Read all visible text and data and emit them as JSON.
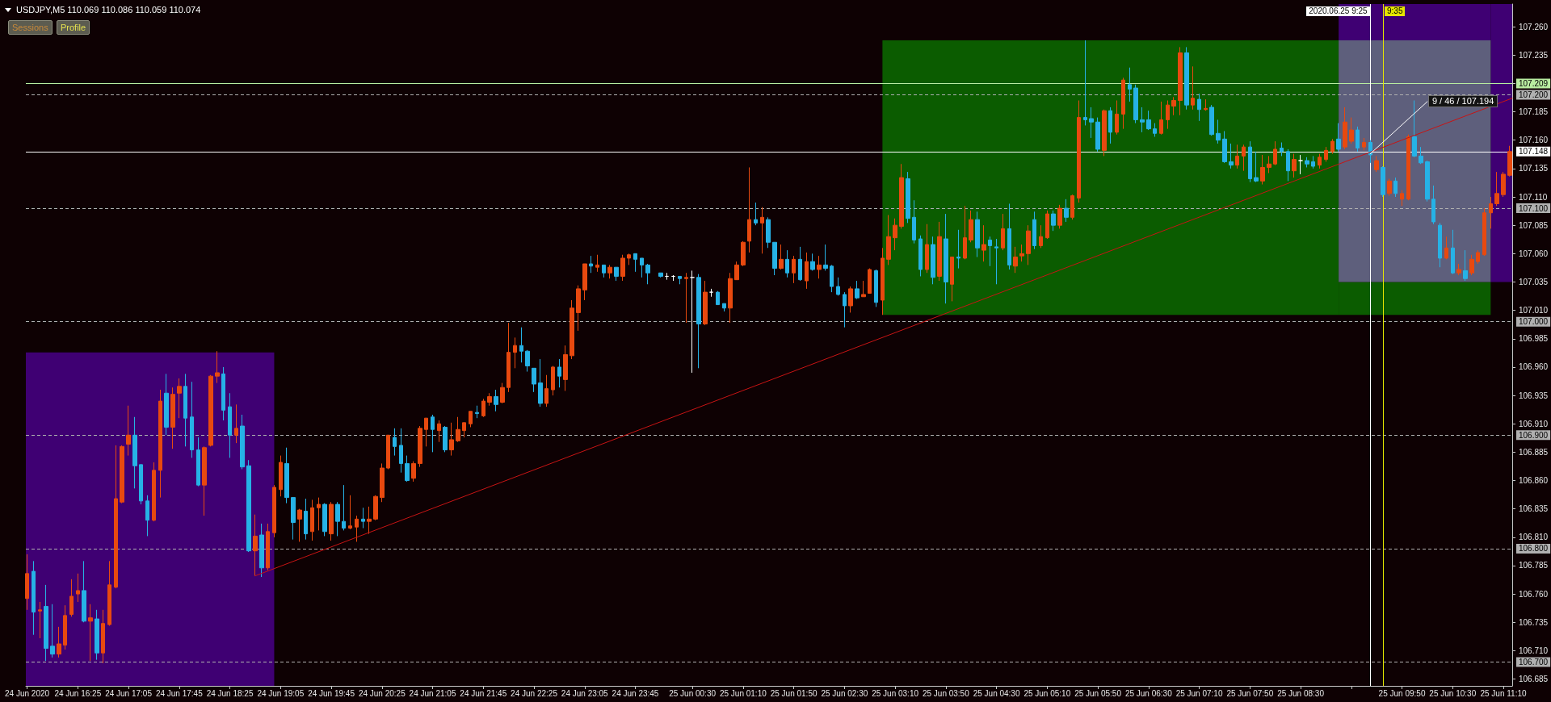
{
  "chart_data": {
    "type": "candlestick",
    "title": "USDJPY,M5  110.069 110.086 110.059 110.074",
    "x": [
      "2020-06-24T15:45",
      "2020-06-24T15:50",
      "2020-06-24T15:55",
      "2020-06-24T16:00",
      "2020-06-24T16:05",
      "2020-06-24T16:10",
      "2020-06-24T16:15",
      "2020-06-24T16:20",
      "2020-06-24T16:25",
      "2020-06-24T16:30",
      "2020-06-24T16:35",
      "2020-06-24T16:40",
      "2020-06-24T16:45",
      "2020-06-24T16:50",
      "2020-06-24T16:55",
      "2020-06-24T17:00",
      "2020-06-24T17:05",
      "2020-06-24T17:10",
      "2020-06-24T17:15",
      "2020-06-24T17:20",
      "2020-06-24T17:25",
      "2020-06-24T17:30",
      "2020-06-24T17:35",
      "2020-06-24T17:40",
      "2020-06-24T17:45",
      "2020-06-24T17:50",
      "2020-06-24T17:55",
      "2020-06-24T18:00",
      "2020-06-24T18:05",
      "2020-06-24T18:10",
      "2020-06-24T18:15",
      "2020-06-24T18:20",
      "2020-06-24T18:25",
      "2020-06-24T18:30",
      "2020-06-24T18:35",
      "2020-06-24T18:40",
      "2020-06-24T18:45",
      "2020-06-24T18:50",
      "2020-06-24T18:55",
      "2020-06-24T19:00",
      "2020-06-24T19:05",
      "2020-06-24T19:10",
      "2020-06-24T19:15",
      "2020-06-24T19:20",
      "2020-06-24T19:25",
      "2020-06-24T19:30",
      "2020-06-24T19:35",
      "2020-06-24T19:40",
      "2020-06-24T19:45",
      "2020-06-24T19:50",
      "2020-06-24T19:55",
      "2020-06-24T20:00",
      "2020-06-24T20:05",
      "2020-06-24T20:10",
      "2020-06-24T20:15",
      "2020-06-24T20:20",
      "2020-06-24T20:25",
      "2020-06-24T20:30",
      "2020-06-24T20:35",
      "2020-06-24T20:40",
      "2020-06-24T20:45",
      "2020-06-24T20:50",
      "2020-06-24T20:55",
      "2020-06-24T21:00",
      "2020-06-24T21:05",
      "2020-06-24T21:10",
      "2020-06-24T21:15",
      "2020-06-24T21:20",
      "2020-06-24T21:25",
      "2020-06-24T21:30",
      "2020-06-24T21:35",
      "2020-06-24T21:40",
      "2020-06-24T21:45",
      "2020-06-24T21:50",
      "2020-06-24T21:55",
      "2020-06-24T22:00",
      "2020-06-24T22:05",
      "2020-06-24T22:10",
      "2020-06-24T22:15",
      "2020-06-24T22:20",
      "2020-06-24T22:25",
      "2020-06-24T22:30",
      "2020-06-24T22:35",
      "2020-06-24T22:40",
      "2020-06-24T22:45",
      "2020-06-24T22:50",
      "2020-06-24T22:55",
      "2020-06-24T23:00",
      "2020-06-24T23:05",
      "2020-06-24T23:10",
      "2020-06-24T23:15",
      "2020-06-24T23:20",
      "2020-06-24T23:25",
      "2020-06-24T23:30",
      "2020-06-24T23:35",
      "2020-06-24T23:40",
      "2020-06-24T23:45",
      "2020-06-24T23:50",
      "2020-06-24T23:55",
      "2020-06-25T00:05",
      "2020-06-25T00:10",
      "2020-06-25T00:15",
      "2020-06-25T00:20",
      "2020-06-25T00:25",
      "2020-06-25T00:30",
      "2020-06-25T00:35",
      "2020-06-25T00:40",
      "2020-06-25T00:45",
      "2020-06-25T00:50",
      "2020-06-25T00:55",
      "2020-06-25T01:00",
      "2020-06-25T01:05",
      "2020-06-25T01:10",
      "2020-06-25T01:15",
      "2020-06-25T01:20",
      "2020-06-25T01:25",
      "2020-06-25T01:30",
      "2020-06-25T01:35",
      "2020-06-25T01:40",
      "2020-06-25T01:45",
      "2020-06-25T01:50",
      "2020-06-25T01:55",
      "2020-06-25T02:00",
      "2020-06-25T02:05",
      "2020-06-25T02:10",
      "2020-06-25T02:15",
      "2020-06-25T02:20",
      "2020-06-25T02:25",
      "2020-06-25T02:30",
      "2020-06-25T02:35",
      "2020-06-25T02:40",
      "2020-06-25T02:45",
      "2020-06-25T02:50",
      "2020-06-25T02:55",
      "2020-06-25T03:00",
      "2020-06-25T03:05",
      "2020-06-25T03:10",
      "2020-06-25T03:15",
      "2020-06-25T03:20",
      "2020-06-25T03:25",
      "2020-06-25T03:30",
      "2020-06-25T03:35",
      "2020-06-25T03:40",
      "2020-06-25T03:45",
      "2020-06-25T03:50",
      "2020-06-25T03:55",
      "2020-06-25T04:00",
      "2020-06-25T04:05",
      "2020-06-25T04:10",
      "2020-06-25T04:15",
      "2020-06-25T04:20",
      "2020-06-25T04:25",
      "2020-06-25T04:30",
      "2020-06-25T04:35",
      "2020-06-25T04:40",
      "2020-06-25T04:45",
      "2020-06-25T04:50",
      "2020-06-25T04:55",
      "2020-06-25T05:00",
      "2020-06-25T05:05",
      "2020-06-25T05:10",
      "2020-06-25T05:15",
      "2020-06-25T05:20",
      "2020-06-25T05:25",
      "2020-06-25T05:30",
      "2020-06-25T05:35",
      "2020-06-25T05:40",
      "2020-06-25T05:45",
      "2020-06-25T05:50",
      "2020-06-25T05:55",
      "2020-06-25T06:00",
      "2020-06-25T06:05",
      "2020-06-25T06:10",
      "2020-06-25T06:15",
      "2020-06-25T06:20",
      "2020-06-25T06:25",
      "2020-06-25T06:30",
      "2020-06-25T06:35",
      "2020-06-25T06:40",
      "2020-06-25T06:45",
      "2020-06-25T06:50",
      "2020-06-25T06:55",
      "2020-06-25T07:00",
      "2020-06-25T07:05",
      "2020-06-25T07:10",
      "2020-06-25T07:15",
      "2020-06-25T07:20",
      "2020-06-25T07:25",
      "2020-06-25T07:30",
      "2020-06-25T07:35",
      "2020-06-25T07:40",
      "2020-06-25T07:45",
      "2020-06-25T07:50",
      "2020-06-25T07:55",
      "2020-06-25T08:00",
      "2020-06-25T08:05",
      "2020-06-25T08:10",
      "2020-06-25T08:15",
      "2020-06-25T08:20",
      "2020-06-25T08:25",
      "2020-06-25T08:30",
      "2020-06-25T08:35",
      "2020-06-25T08:40",
      "2020-06-25T08:45",
      "2020-06-25T08:50",
      "2020-06-25T08:55",
      "2020-06-25T09:00",
      "2020-06-25T09:05",
      "2020-06-25T09:10",
      "2020-06-25T09:15",
      "2020-06-25T09:20",
      "2020-06-25T09:25",
      "2020-06-25T09:30",
      "2020-06-25T09:35",
      "2020-06-25T09:40",
      "2020-06-25T09:45",
      "2020-06-25T09:50",
      "2020-06-25T09:55",
      "2020-06-25T10:00",
      "2020-06-25T10:05",
      "2020-06-25T10:10",
      "2020-06-25T10:15",
      "2020-06-25T10:20",
      "2020-06-25T10:25",
      "2020-06-25T10:30",
      "2020-06-25T10:35",
      "2020-06-25T10:40",
      "2020-06-25T10:45",
      "2020-06-25T10:50",
      "2020-06-25T10:55",
      "2020-06-25T11:00",
      "2020-06-25T11:05",
      "2020-06-25T11:10",
      "2020-06-25T11:15"
    ],
    "ohlc": [
      [
        106.756,
        106.795,
        106.746,
        106.778
      ],
      [
        106.78,
        106.789,
        106.724,
        106.744
      ],
      [
        106.745,
        106.753,
        106.721,
        106.746
      ],
      [
        106.749,
        106.768,
        106.701,
        106.712
      ],
      [
        106.714,
        106.751,
        106.704,
        106.707
      ],
      [
        106.707,
        106.731,
        106.704,
        106.716
      ],
      [
        106.715,
        106.75,
        106.711,
        106.741
      ],
      [
        106.742,
        106.773,
        106.74,
        106.758
      ],
      [
        106.76,
        106.778,
        106.753,
        106.763
      ],
      [
        106.763,
        106.789,
        106.735,
        106.736
      ],
      [
        106.736,
        106.751,
        106.701,
        106.739
      ],
      [
        106.738,
        106.746,
        106.702,
        106.708
      ],
      [
        106.708,
        106.746,
        106.699,
        106.734
      ],
      [
        106.733,
        106.789,
        106.732,
        106.768
      ],
      [
        106.766,
        106.891,
        106.765,
        106.844
      ],
      [
        106.841,
        106.891,
        106.84,
        106.89
      ],
      [
        106.892,
        106.926,
        106.882,
        106.9
      ],
      [
        106.9,
        106.916,
        106.853,
        106.873
      ],
      [
        106.874,
        106.874,
        106.839,
        106.842
      ],
      [
        106.842,
        106.847,
        106.811,
        106.825
      ],
      [
        106.825,
        106.876,
        106.824,
        106.869
      ],
      [
        106.869,
        106.94,
        106.845,
        106.93
      ],
      [
        106.937,
        106.954,
        106.9,
        106.907
      ],
      [
        106.907,
        106.942,
        106.888,
        106.936
      ],
      [
        106.937,
        106.95,
        106.915,
        106.943
      ],
      [
        106.943,
        106.954,
        106.89,
        106.915
      ],
      [
        106.916,
        106.947,
        106.88,
        106.887
      ],
      [
        106.887,
        106.898,
        106.855,
        106.856
      ],
      [
        106.856,
        106.89,
        106.829,
        106.889
      ],
      [
        106.891,
        106.953,
        106.89,
        106.952
      ],
      [
        106.952,
        106.974,
        106.946,
        106.955
      ],
      [
        106.954,
        106.96,
        106.913,
        106.922
      ],
      [
        106.925,
        106.937,
        106.88,
        106.9
      ],
      [
        106.9,
        106.927,
        106.893,
        106.906
      ],
      [
        106.908,
        106.918,
        106.87,
        106.872
      ],
      [
        106.873,
        106.878,
        106.797,
        106.798
      ],
      [
        106.798,
        106.83,
        106.776,
        106.811
      ],
      [
        106.812,
        106.822,
        106.775,
        106.783
      ],
      [
        106.783,
        106.822,
        106.781,
        106.815
      ],
      [
        106.814,
        106.856,
        106.81,
        106.854
      ],
      [
        106.852,
        106.882,
        106.846,
        106.876
      ],
      [
        106.875,
        106.889,
        106.84,
        106.845
      ],
      [
        106.845,
        106.845,
        106.808,
        106.823
      ],
      [
        106.826,
        106.835,
        106.806,
        106.834
      ],
      [
        106.833,
        106.844,
        106.808,
        106.813
      ],
      [
        106.815,
        106.843,
        106.807,
        106.836
      ],
      [
        106.836,
        106.845,
        106.816,
        106.839
      ],
      [
        106.839,
        106.84,
        106.811,
        106.815
      ],
      [
        106.813,
        106.841,
        106.807,
        106.839
      ],
      [
        106.839,
        106.841,
        106.811,
        106.824
      ],
      [
        106.824,
        106.856,
        106.816,
        106.818
      ],
      [
        106.818,
        106.847,
        106.817,
        106.82
      ],
      [
        106.819,
        106.829,
        106.806,
        106.826
      ],
      [
        106.826,
        106.836,
        106.818,
        106.824
      ],
      [
        106.824,
        106.837,
        106.813,
        106.826
      ],
      [
        106.826,
        106.847,
        106.825,
        106.846
      ],
      [
        106.845,
        106.875,
        106.841,
        106.871
      ],
      [
        106.871,
        106.9,
        106.87,
        106.9
      ],
      [
        106.898,
        106.906,
        106.882,
        106.89
      ],
      [
        106.891,
        106.906,
        106.867,
        106.875
      ],
      [
        106.875,
        106.882,
        106.859,
        106.86
      ],
      [
        106.862,
        106.877,
        106.859,
        106.875
      ],
      [
        106.875,
        106.908,
        106.872,
        106.906
      ],
      [
        106.905,
        106.915,
        106.89,
        106.915
      ],
      [
        106.916,
        106.918,
        106.885,
        106.905
      ],
      [
        106.904,
        106.913,
        106.894,
        106.91
      ],
      [
        106.907,
        106.908,
        106.885,
        106.887
      ],
      [
        106.887,
        106.911,
        106.882,
        106.896
      ],
      [
        106.895,
        106.916,
        106.894,
        106.905
      ],
      [
        106.904,
        106.911,
        106.898,
        106.911
      ],
      [
        106.91,
        106.921,
        106.907,
        106.921
      ],
      [
        106.92,
        106.926,
        106.915,
        106.919
      ],
      [
        106.917,
        106.932,
        106.916,
        106.93
      ],
      [
        106.929,
        106.937,
        106.926,
        106.934
      ],
      [
        106.934,
        106.94,
        106.921,
        106.927
      ],
      [
        106.929,
        106.946,
        106.928,
        106.942
      ],
      [
        106.942,
        106.999,
        106.938,
        106.973
      ],
      [
        106.973,
        106.986,
        106.959,
        106.979
      ],
      [
        106.979,
        106.995,
        106.964,
        106.974
      ],
      [
        106.974,
        106.975,
        106.956,
        106.961
      ],
      [
        106.959,
        106.959,
        106.938,
        106.945
      ],
      [
        106.946,
        106.967,
        106.925,
        106.928
      ],
      [
        106.928,
        106.953,
        106.925,
        106.941
      ],
      [
        106.94,
        106.961,
        106.935,
        106.96
      ],
      [
        106.96,
        106.967,
        106.942,
        106.952
      ],
      [
        106.949,
        106.979,
        106.939,
        106.971
      ],
      [
        106.97,
        107.019,
        106.967,
        107.012
      ],
      [
        107.008,
        107.032,
        106.992,
        107.029
      ],
      [
        107.028,
        107.051,
        107.019,
        107.051
      ],
      [
        107.051,
        107.058,
        107.043,
        107.049
      ],
      [
        107.048,
        107.059,
        107.044,
        107.05
      ],
      [
        107.05,
        107.05,
        107.039,
        107.043
      ],
      [
        107.043,
        107.05,
        107.038,
        107.048
      ],
      [
        107.048,
        107.048,
        107.036,
        107.04
      ],
      [
        107.04,
        107.059,
        107.036,
        107.056
      ],
      [
        107.056,
        107.06,
        107.05,
        107.059
      ],
      [
        107.06,
        107.06,
        107.044,
        107.055
      ],
      [
        107.056,
        107.056,
        107.039,
        107.05
      ],
      [
        107.05,
        107.051,
        107.033,
        107.043
      ],
      [
        107.043,
        107.043,
        107.039,
        107.04
      ],
      [
        107.04,
        107.043,
        107.037,
        107.04
      ],
      [
        107.04,
        107.041,
        107.036,
        107.04
      ],
      [
        107.04,
        107.04,
        107.033,
        107.038
      ],
      [
        107.038,
        107.043,
        106.999,
        107.039
      ],
      [
        107.039,
        107.045,
        106.955,
        107.039
      ],
      [
        107.039,
        107.042,
        106.959,
        106.998
      ],
      [
        106.998,
        107.036,
        106.997,
        107.026
      ],
      [
        107.026,
        107.029,
        107.022,
        107.026
      ],
      [
        107.026,
        107.027,
        107.015,
        107.015
      ],
      [
        107.016,
        107.016,
        107.009,
        107.012
      ],
      [
        107.012,
        107.043,
        106.999,
        107.038
      ],
      [
        107.037,
        107.053,
        107.037,
        107.05
      ],
      [
        107.05,
        107.071,
        107.049,
        107.07
      ],
      [
        107.071,
        107.136,
        107.061,
        107.09
      ],
      [
        107.09,
        107.105,
        107.085,
        107.087
      ],
      [
        107.087,
        107.101,
        107.06,
        107.092
      ],
      [
        107.09,
        107.092,
        107.065,
        107.07
      ],
      [
        107.07,
        107.07,
        107.041,
        107.047
      ],
      [
        107.047,
        107.068,
        107.046,
        107.055
      ],
      [
        107.055,
        107.063,
        107.039,
        107.043
      ],
      [
        107.043,
        107.058,
        107.034,
        107.055
      ],
      [
        107.055,
        107.066,
        107.036,
        107.037
      ],
      [
        107.036,
        107.061,
        107.029,
        107.053
      ],
      [
        107.053,
        107.06,
        107.045,
        107.046
      ],
      [
        107.046,
        107.058,
        107.038,
        107.05
      ],
      [
        107.05,
        107.068,
        107.045,
        107.047
      ],
      [
        107.049,
        107.05,
        107.026,
        107.031
      ],
      [
        107.031,
        107.039,
        107.023,
        107.024
      ],
      [
        107.024,
        107.026,
        106.995,
        107.014
      ],
      [
        107.014,
        107.031,
        107.008,
        107.029
      ],
      [
        107.029,
        107.036,
        107.02,
        107.021
      ],
      [
        107.022,
        107.036,
        107.022,
        107.024
      ],
      [
        107.025,
        107.047,
        107.025,
        107.046
      ],
      [
        107.045,
        107.046,
        107.013,
        107.017
      ],
      [
        107.019,
        107.065,
        107.006,
        107.056
      ],
      [
        107.055,
        107.094,
        107.05,
        107.075
      ],
      [
        107.074,
        107.091,
        107.063,
        107.085
      ],
      [
        107.084,
        107.139,
        107.082,
        107.127
      ],
      [
        107.126,
        107.132,
        107.087,
        107.091
      ],
      [
        107.092,
        107.107,
        107.069,
        107.072
      ],
      [
        107.073,
        107.076,
        107.04,
        107.046
      ],
      [
        107.046,
        107.086,
        107.043,
        107.068
      ],
      [
        107.068,
        107.075,
        107.033,
        107.039
      ],
      [
        107.04,
        107.088,
        107.036,
        107.075
      ],
      [
        107.073,
        107.095,
        107.016,
        107.035
      ],
      [
        107.033,
        107.057,
        107.018,
        107.057
      ],
      [
        107.057,
        107.081,
        107.047,
        107.056
      ],
      [
        107.056,
        107.102,
        107.055,
        107.074
      ],
      [
        107.072,
        107.098,
        107.07,
        107.09
      ],
      [
        107.09,
        107.097,
        107.057,
        107.065
      ],
      [
        107.063,
        107.085,
        107.053,
        107.068
      ],
      [
        107.072,
        107.075,
        107.049,
        107.067
      ],
      [
        107.066,
        107.073,
        107.033,
        107.065
      ],
      [
        107.065,
        107.095,
        107.063,
        107.082
      ],
      [
        107.082,
        107.104,
        107.046,
        107.05
      ],
      [
        107.049,
        107.066,
        107.043,
        107.057
      ],
      [
        107.058,
        107.068,
        107.053,
        107.06
      ],
      [
        107.06,
        107.085,
        107.05,
        107.08
      ],
      [
        107.09,
        107.097,
        107.064,
        107.067
      ],
      [
        107.067,
        107.085,
        107.065,
        107.075
      ],
      [
        107.074,
        107.098,
        107.073,
        107.095
      ],
      [
        107.095,
        107.098,
        107.08,
        107.085
      ],
      [
        107.085,
        107.103,
        107.082,
        107.1
      ],
      [
        107.1,
        107.108,
        107.088,
        107.092
      ],
      [
        107.092,
        107.112,
        107.09,
        107.111
      ],
      [
        107.109,
        107.195,
        107.105,
        107.18
      ],
      [
        107.18,
        107.248,
        107.173,
        107.178
      ],
      [
        107.179,
        107.189,
        107.162,
        107.176
      ],
      [
        107.176,
        107.18,
        107.15,
        107.152
      ],
      [
        107.151,
        107.187,
        107.146,
        107.186
      ],
      [
        107.186,
        107.189,
        107.157,
        107.167
      ],
      [
        107.167,
        107.195,
        107.165,
        107.183
      ],
      [
        107.183,
        107.215,
        107.17,
        107.213
      ],
      [
        107.209,
        107.224,
        107.194,
        107.205
      ],
      [
        107.206,
        107.209,
        107.175,
        107.178
      ],
      [
        107.178,
        107.189,
        107.167,
        107.176
      ],
      [
        107.178,
        107.186,
        107.169,
        107.17
      ],
      [
        107.17,
        107.175,
        107.163,
        107.166
      ],
      [
        107.166,
        107.194,
        107.165,
        107.178
      ],
      [
        107.178,
        107.195,
        107.17,
        107.191
      ],
      [
        107.19,
        107.198,
        107.182,
        107.195
      ],
      [
        107.195,
        107.242,
        107.182,
        107.237
      ],
      [
        107.237,
        107.242,
        107.187,
        107.191
      ],
      [
        107.191,
        107.225,
        107.187,
        107.197
      ],
      [
        107.196,
        107.201,
        107.177,
        107.187
      ],
      [
        107.187,
        107.196,
        107.186,
        107.188
      ],
      [
        107.189,
        107.191,
        107.164,
        107.165
      ],
      [
        107.166,
        107.178,
        107.157,
        107.16
      ],
      [
        107.161,
        107.168,
        107.14,
        107.141
      ],
      [
        107.141,
        107.157,
        107.135,
        107.138
      ],
      [
        107.138,
        107.156,
        107.135,
        107.146
      ],
      [
        107.146,
        107.156,
        107.133,
        107.154
      ],
      [
        107.154,
        107.159,
        107.123,
        107.126
      ],
      [
        107.127,
        107.15,
        107.123,
        107.124
      ],
      [
        107.124,
        107.147,
        107.121,
        107.136
      ],
      [
        107.136,
        107.146,
        107.131,
        107.139
      ],
      [
        107.139,
        107.159,
        107.138,
        107.152
      ],
      [
        107.153,
        107.158,
        107.146,
        107.15
      ],
      [
        107.15,
        107.152,
        107.124,
        107.133
      ],
      [
        107.133,
        107.148,
        107.127,
        107.143
      ],
      [
        107.142,
        107.147,
        107.13,
        107.142
      ],
      [
        107.142,
        107.145,
        107.136,
        107.139
      ],
      [
        107.141,
        107.146,
        107.135,
        107.137
      ],
      [
        107.138,
        107.148,
        107.135,
        107.145
      ],
      [
        107.143,
        107.154,
        107.141,
        107.151
      ],
      [
        107.15,
        107.161,
        107.148,
        107.159
      ],
      [
        107.161,
        107.175,
        107.15,
        107.152
      ],
      [
        107.154,
        107.189,
        107.152,
        107.176
      ],
      [
        107.159,
        107.18,
        107.157,
        107.169
      ],
      [
        107.169,
        107.172,
        107.15,
        107.153
      ],
      [
        107.154,
        107.162,
        107.151,
        107.158
      ],
      [
        107.158,
        107.16,
        107.14,
        107.147
      ],
      [
        107.134,
        107.146,
        107.132,
        107.142
      ],
      [
        107.136,
        107.137,
        107.11,
        107.112
      ],
      [
        107.113,
        107.126,
        107.111,
        107.124
      ],
      [
        107.124,
        107.127,
        107.11,
        107.113
      ],
      [
        107.108,
        107.116,
        107.102,
        107.113
      ],
      [
        107.108,
        107.165,
        107.107,
        107.163
      ],
      [
        107.163,
        107.195,
        107.145,
        107.146
      ],
      [
        107.146,
        107.154,
        107.139,
        107.14
      ],
      [
        107.141,
        107.142,
        107.106,
        107.108
      ],
      [
        107.108,
        107.12,
        107.086,
        107.088
      ],
      [
        107.085,
        107.087,
        107.048,
        107.056
      ],
      [
        107.056,
        107.075,
        107.055,
        107.065
      ],
      [
        107.065,
        107.081,
        107.042,
        107.043
      ],
      [
        107.043,
        107.051,
        107.041,
        107.046
      ],
      [
        107.045,
        107.063,
        107.036,
        107.038
      ],
      [
        107.043,
        107.059,
        107.041,
        107.055
      ],
      [
        107.053,
        107.063,
        107.051,
        107.061
      ],
      [
        107.059,
        107.1,
        107.058,
        107.096
      ],
      [
        107.096,
        107.11,
        107.082,
        107.104
      ],
      [
        107.104,
        107.132,
        107.102,
        107.113
      ],
      [
        107.112,
        107.132,
        107.11,
        107.13
      ],
      [
        107.129,
        107.155,
        107.128,
        107.15
      ]
    ],
    "colors": [
      "#e8490f",
      "#26b2e6",
      "#e8490f",
      "#26b2e6",
      "#26b2e6",
      "#e8490f",
      "#e8490f",
      "#e8490f",
      "#e8490f",
      "#26b2e6",
      "#e8490f",
      "#26b2e6",
      "#e8490f",
      "#e8490f",
      "#e8490f",
      "#e8490f",
      "#e8490f",
      "#26b2e6",
      "#26b2e6",
      "#26b2e6",
      "#e8490f",
      "#e8490f",
      "#26b2e6",
      "#e8490f",
      "#e8490f",
      "#26b2e6",
      "#26b2e6",
      "#26b2e6",
      "#e8490f",
      "#e8490f",
      "#e8490f",
      "#26b2e6",
      "#26b2e6",
      "#e8490f",
      "#26b2e6",
      "#26b2e6",
      "#e8490f",
      "#26b2e6",
      "#e8490f",
      "#e8490f",
      "#e8490f",
      "#26b2e6",
      "#26b2e6",
      "#e8490f",
      "#26b2e6",
      "#e8490f",
      "#e8490f",
      "#26b2e6",
      "#e8490f",
      "#26b2e6",
      "#26b2e6",
      "#e8490f",
      "#e8490f",
      "#26b2e6",
      "#e8490f",
      "#e8490f",
      "#e8490f",
      "#e8490f",
      "#26b2e6",
      "#26b2e6",
      "#26b2e6",
      "#e8490f",
      "#e8490f",
      "#e8490f",
      "#26b2e6",
      "#e8490f",
      "#26b2e6",
      "#e8490f",
      "#e8490f",
      "#e8490f",
      "#e8490f",
      "#26b2e6",
      "#e8490f",
      "#e8490f",
      "#26b2e6",
      "#e8490f",
      "#e8490f",
      "#e8490f",
      "#26b2e6",
      "#26b2e6",
      "#26b2e6",
      "#26b2e6",
      "#e8490f",
      "#e8490f",
      "#26b2e6",
      "#e8490f",
      "#e8490f",
      "#e8490f",
      "#e8490f",
      "#26b2e6",
      "#e8490f",
      "#26b2e6",
      "#e8490f",
      "#26b2e6",
      "#e8490f",
      "#e8490f",
      "#26b2e6",
      "#26b2e6",
      "#26b2e6",
      "#26b2e6",
      "#ffffff",
      "#ffffff",
      "#26b2e6",
      "#e8490f",
      "#ffffff",
      "#26b2e6",
      "#e8490f",
      "#ffffff",
      "#26b2e6",
      "#26b2e6",
      "#e8490f",
      "#e8490f",
      "#e8490f",
      "#e8490f",
      "#26b2e6",
      "#e8490f",
      "#26b2e6",
      "#26b2e6",
      "#e8490f",
      "#26b2e6",
      "#e8490f",
      "#26b2e6",
      "#e8490f",
      "#26b2e6",
      "#e8490f",
      "#26b2e6",
      "#26b2e6",
      "#26b2e6",
      "#26b2e6",
      "#e8490f",
      "#26b2e6",
      "#e8490f",
      "#e8490f",
      "#26b2e6",
      "#e8490f",
      "#e8490f",
      "#e8490f",
      "#e8490f",
      "#26b2e6",
      "#26b2e6",
      "#26b2e6",
      "#e8490f",
      "#26b2e6",
      "#e8490f",
      "#26b2e6",
      "#e8490f",
      "#26b2e6",
      "#e8490f",
      "#e8490f",
      "#26b2e6",
      "#e8490f",
      "#26b2e6",
      "#26b2e6",
      "#e8490f",
      "#26b2e6",
      "#e8490f",
      "#e8490f",
      "#e8490f",
      "#26b2e6",
      "#e8490f",
      "#e8490f",
      "#26b2e6",
      "#e8490f",
      "#26b2e6",
      "#e8490f",
      "#e8490f",
      "#26b2e6",
      "#26b2e6",
      "#26b2e6",
      "#e8490f",
      "#26b2e6",
      "#e8490f",
      "#e8490f",
      "#26b2e6",
      "#26b2e6",
      "#26b2e6",
      "#26b2e6",
      "#26b2e6",
      "#e8490f",
      "#e8490f",
      "#e8490f",
      "#e8490f",
      "#26b2e6",
      "#e8490f",
      "#26b2e6",
      "#e8490f",
      "#26b2e6",
      "#26b2e6",
      "#26b2e6",
      "#26b2e6",
      "#e8490f",
      "#e8490f",
      "#26b2e6",
      "#26b2e6",
      "#e8490f",
      "#e8490f",
      "#e8490f",
      "#26b2e6",
      "#26b2e6",
      "#e8490f",
      "#ffffff",
      "#26b2e6",
      "#26b2e6",
      "#e8490f",
      "#e8490f",
      "#e8490f",
      "#26b2e6",
      "#e8490f",
      "#e8490f",
      "#26b2e6",
      "#e8490f",
      "#26b2e6",
      "#e8490f",
      "#26b2e6",
      "#e8490f",
      "#26b2e6",
      "#e8490f",
      "#e8490f",
      "#26b2e6",
      "#26b2e6",
      "#26b2e6",
      "#26b2e6",
      "#26b2e6",
      "#e8490f",
      "#26b2e6",
      "#e8490f",
      "#26b2e6",
      "#e8490f",
      "#e8490f",
      "#e8490f",
      "#e8490f",
      "#e8490f",
      "#e8490f",
      "#e8490f"
    ],
    "series": [
      {
        "type": "line",
        "color": "#3f0073",
        "x": [
          "2020-06-24T15:44",
          "2020-06-24T19:00"
        ],
        "values": [
          null,
          null
        ],
        "upper": [
          106.973,
          106.973
        ],
        "lower": [
          106.679,
          106.679
        ]
      },
      {
        "type": "line",
        "color": "#0b5c00",
        "x": [
          "2020-06-25T03:00",
          "2020-06-25T09:00"
        ],
        "values": [
          null,
          null
        ],
        "upper": [
          107.248,
          107.248
        ],
        "lower": [
          107.006,
          107.006
        ]
      },
      {
        "type": "line",
        "color": "#0b5c00",
        "x": [
          "2020-06-25T09:00",
          "2020-06-25T11:00"
        ],
        "values": [
          null,
          null
        ],
        "upper": [
          107.035,
          107.035
        ],
        "lower": [
          107.006,
          107.006
        ]
      },
      {
        "type": "line",
        "color": "#3f0073",
        "x": [
          "2020-06-25T09:00",
          "2020-06-25T11:00"
        ],
        "values": [
          null,
          null
        ],
        "upper": [
          107.28,
          107.28
        ],
        "lower": [
          107.248,
          107.248
        ]
      },
      {
        "type": "line",
        "color": "#3f0073",
        "x": [
          "2020-06-25T11:00",
          "2020-06-25T11:17"
        ],
        "values": [
          null,
          null
        ],
        "upper": [
          107.28,
          107.28
        ],
        "lower": [
          107.035,
          107.035
        ]
      },
      {
        "type": "line",
        "color": "#5e5f7c",
        "x": [
          "2020-06-25T09:00",
          "2020-06-25T11:00"
        ],
        "values": [
          null,
          null
        ],
        "upper": [
          107.248,
          107.248
        ],
        "lower": [
          107.035,
          107.035
        ]
      },
      {
        "type": "line",
        "color": "#c81414",
        "x": [
          "2020-06-24T18:45",
          "2020-06-25T11:17"
        ],
        "values": [
          106.776,
          107.197
        ]
      },
      {
        "type": "line",
        "color": "#ffffff",
        "x": [
          "2020-06-25T09:25",
          "2020-06-25T10:10"
        ],
        "values": [
          107.148,
          107.194
        ]
      }
    ],
    "ref_lines": [
      {
        "axis": "y",
        "value": 107.209,
        "label": "107.209",
        "color": "#b8eca0",
        "line_style": "solid"
      },
      {
        "axis": "y",
        "value": 107.2,
        "label": "107.200",
        "color": "#b0b0b0",
        "line_style": "dashed"
      },
      {
        "axis": "y",
        "value": 107.148,
        "label": "107.148",
        "color": "#ffffff",
        "line_style": "solid"
      },
      {
        "axis": "y",
        "value": 107.1,
        "label": "107.100",
        "color": "#b0b0b0",
        "line_style": "dashed"
      },
      {
        "axis": "y",
        "value": 107.0,
        "label": "107.000",
        "color": "#b0b0b0",
        "line_style": "dashed"
      },
      {
        "axis": "y",
        "value": 106.9,
        "label": "106.900",
        "color": "#b0b0b0",
        "line_style": "dashed"
      },
      {
        "axis": "y",
        "value": 106.8,
        "label": "106.800",
        "color": "#b0b0b0",
        "line_style": "dashed"
      },
      {
        "axis": "y",
        "value": 106.7,
        "label": "106.700",
        "color": "#b0b0b0",
        "line_style": "dashed"
      },
      {
        "axis": "x",
        "value": "2020-06-25T09:25",
        "label": "2020.06.25 9:25",
        "color": "#ffffff",
        "line_style": "solid"
      },
      {
        "axis": "x",
        "value": "2020-06-25T09:35",
        "label": "9:35",
        "color": "#e6e600",
        "line_style": "solid"
      }
    ],
    "annotations": [
      "Sessions",
      "Profile",
      {
        "text": "9 / 46 / 107.194",
        "x": "2020-06-25T10:10",
        "y": 107.194
      }
    ],
    "xlim": [
      "2020-06-24T15:44",
      "2020-06-25T11:17"
    ],
    "xticks": [
      {
        "value": "2020-06-24T15:45",
        "label": "24 Jun 2020"
      },
      {
        "value": "2020-06-24T16:25",
        "label": "24 Jun 16:25"
      },
      {
        "value": "2020-06-24T17:05",
        "label": "24 Jun 17:05"
      },
      {
        "value": "2020-06-24T17:45",
        "label": "24 Jun 17:45"
      },
      {
        "value": "2020-06-24T18:25",
        "label": "24 Jun 18:25"
      },
      {
        "value": "2020-06-24T19:05",
        "label": "24 Jun 19:05"
      },
      {
        "value": "2020-06-24T19:45",
        "label": "24 Jun 19:45"
      },
      {
        "value": "2020-06-24T20:25",
        "label": "24 Jun 20:25"
      },
      {
        "value": "2020-06-24T21:05",
        "label": "24 Jun 21:05"
      },
      {
        "value": "2020-06-24T21:45",
        "label": "24 Jun 21:45"
      },
      {
        "value": "2020-06-24T22:25",
        "label": "24 Jun 22:25"
      },
      {
        "value": "2020-06-24T23:05",
        "label": "24 Jun 23:05"
      },
      {
        "value": "2020-06-24T23:45",
        "label": "24 Jun 23:45"
      },
      {
        "value": "2020-06-25T00:30",
        "label": "25 Jun 00:30"
      },
      {
        "value": "2020-06-25T01:10",
        "label": "25 Jun 01:10"
      },
      {
        "value": "2020-06-25T01:50",
        "label": "25 Jun 01:50"
      },
      {
        "value": "2020-06-25T02:30",
        "label": "25 Jun 02:30"
      },
      {
        "value": "2020-06-25T03:10",
        "label": "25 Jun 03:10"
      },
      {
        "value": "2020-06-25T03:50",
        "label": "25 Jun 03:50"
      },
      {
        "value": "2020-06-25T04:30",
        "label": "25 Jun 04:30"
      },
      {
        "value": "2020-06-25T05:10",
        "label": "25 Jun 05:10"
      },
      {
        "value": "2020-06-25T05:50",
        "label": "25 Jun 05:50"
      },
      {
        "value": "2020-06-25T06:30",
        "label": "25 Jun 06:30"
      },
      {
        "value": "2020-06-25T07:10",
        "label": "25 Jun 07:10"
      },
      {
        "value": "2020-06-25T07:50",
        "label": "25 Jun 07:50"
      },
      {
        "value": "2020-06-25T08:30",
        "label": "25 Jun 08:30"
      },
      {
        "value": "2020-06-25T09:10",
        "label": null
      },
      {
        "value": "2020-06-25T09:50",
        "label": "25 Jun 09:50"
      },
      {
        "value": "2020-06-25T10:30",
        "label": "25 Jun 10:30"
      },
      {
        "value": "2020-06-25T11:10",
        "label": "25 Jun 11:10"
      }
    ],
    "ylim": [
      106.679,
      107.28
    ],
    "yticks": [
      {
        "value": 106.685,
        "label": "106.685"
      },
      {
        "value": 106.71,
        "label": "106.710"
      },
      106.735,
      {
        "value": 106.76,
        "label": "106.760"
      },
      106.785,
      {
        "value": 106.81,
        "label": "106.810"
      },
      106.835,
      {
        "value": 106.86,
        "label": "106.860"
      },
      106.885,
      {
        "value": 106.91,
        "label": "106.910"
      },
      106.935,
      {
        "value": 106.96,
        "label": "106.960"
      },
      106.985,
      {
        "value": 107.01,
        "label": "107.010"
      },
      107.035,
      {
        "value": 107.06,
        "label": "107.060"
      },
      107.085,
      {
        "value": 107.11,
        "label": "107.110"
      },
      107.135,
      {
        "value": 107.16,
        "label": "107.160"
      },
      107.185,
      {
        "value": 107.21,
        "label": null
      },
      107.235,
      {
        "value": 107.26,
        "label": "107.260"
      }
    ]
  }
}
